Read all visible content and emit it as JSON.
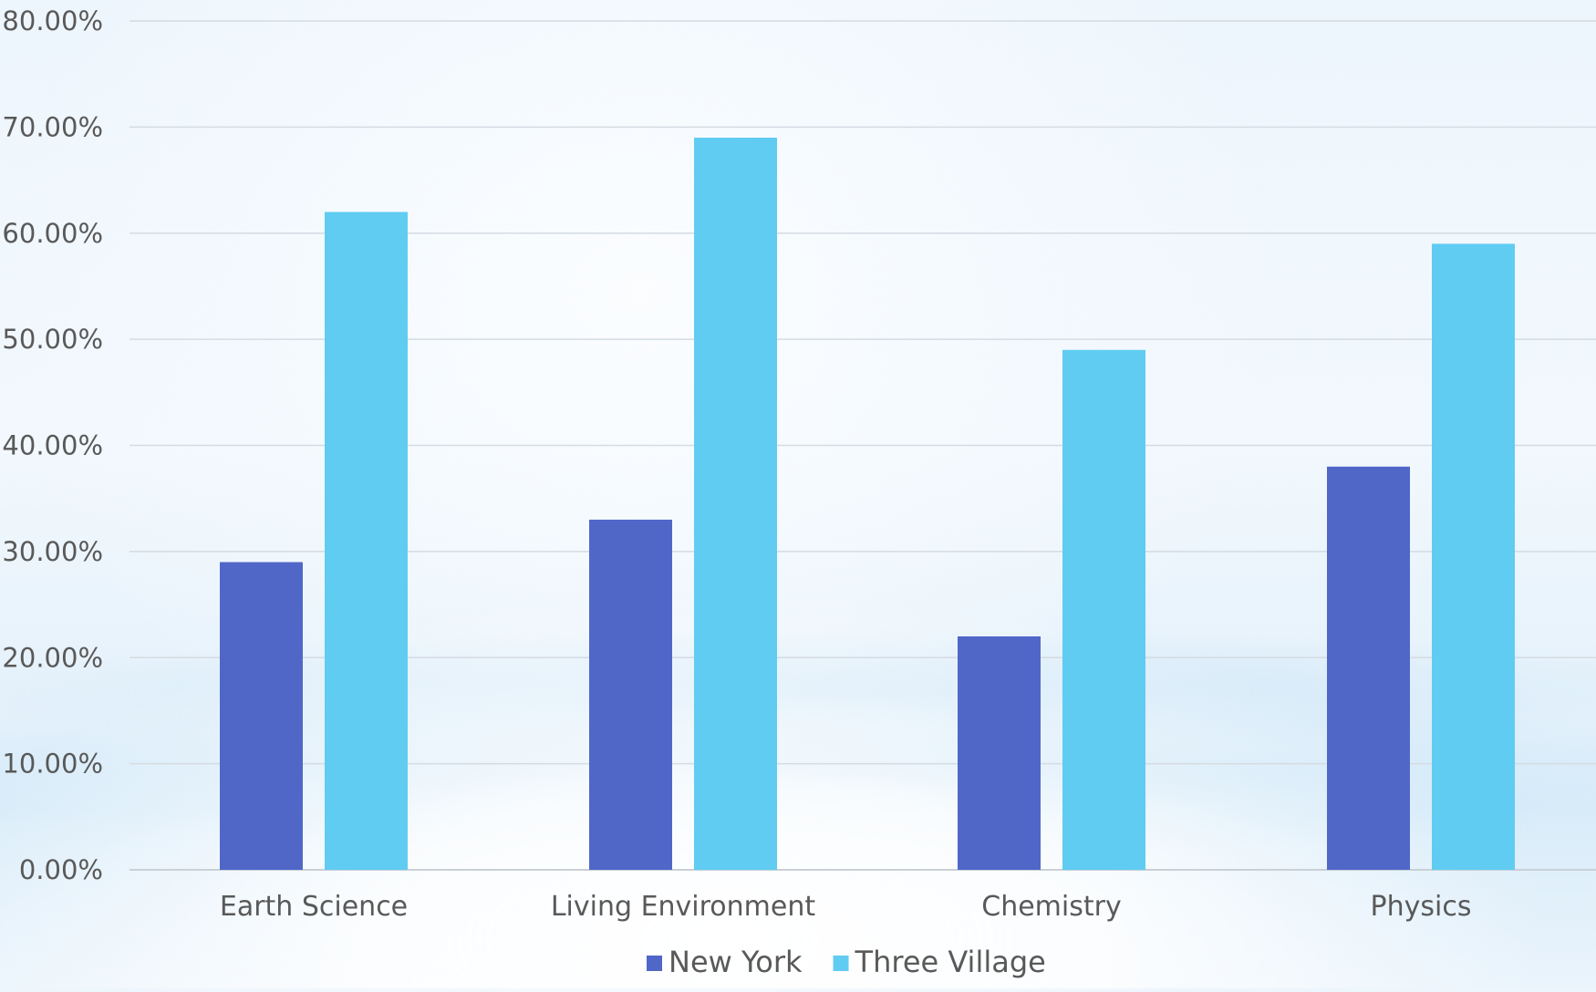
{
  "chart_data": {
    "type": "bar",
    "categories": [
      "Earth Science",
      "Living Environment",
      "Chemistry",
      "Physics"
    ],
    "series": [
      {
        "name": "New York",
        "values": [
          29,
          33,
          22,
          38
        ],
        "color": "#5067C8"
      },
      {
        "name": "Three Village",
        "values": [
          62,
          69,
          49,
          59
        ],
        "color": "#60CCF2"
      }
    ],
    "ylim": [
      0,
      80
    ],
    "yticks": [
      "0.00%",
      "10.00%",
      "20.00%",
      "30.00%",
      "40.00%",
      "50.00%",
      "60.00%",
      "70.00%",
      "80.00%"
    ],
    "ytick_values": [
      0,
      10,
      20,
      30,
      40,
      50,
      60,
      70,
      80
    ],
    "grid": true,
    "legend_position": "bottom",
    "gridline_color": "#d4dbe2",
    "label_color": "#595959"
  }
}
